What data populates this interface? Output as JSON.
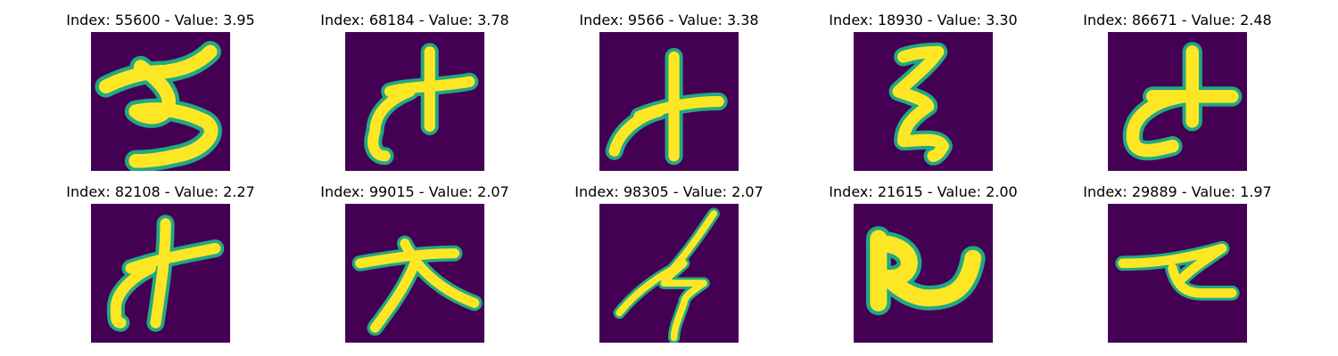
{
  "colors": {
    "background": "#440154",
    "stroke_core": "#fde725",
    "stroke_mid": "#7ad151",
    "stroke_edge": "#22a884"
  },
  "images": [
    {
      "title": "Index: 55600 - Value: 3.95",
      "glyph": "3"
    },
    {
      "title": "Index: 68184 - Value: 3.78",
      "glyph": "な-like"
    },
    {
      "title": "Index: 9566 - Value: 3.38",
      "glyph": "オ-like"
    },
    {
      "title": "Index: 18930 - Value: 3.30",
      "glyph": "ξ-like"
    },
    {
      "title": "Index: 86671 - Value: 2.48",
      "glyph": "さ-like"
    },
    {
      "title": "Index: 82108 - Value: 2.27",
      "glyph": "オ-like"
    },
    {
      "title": "Index: 99015 - Value: 2.07",
      "glyph": "大"
    },
    {
      "title": "Index: 98305 - Value: 2.07",
      "glyph": "hook stroke"
    },
    {
      "title": "Index: 21615 - Value: 2.00",
      "glyph": "R-like"
    },
    {
      "title": "Index: 29889 - Value: 1.97",
      "glyph": "て-like"
    }
  ]
}
